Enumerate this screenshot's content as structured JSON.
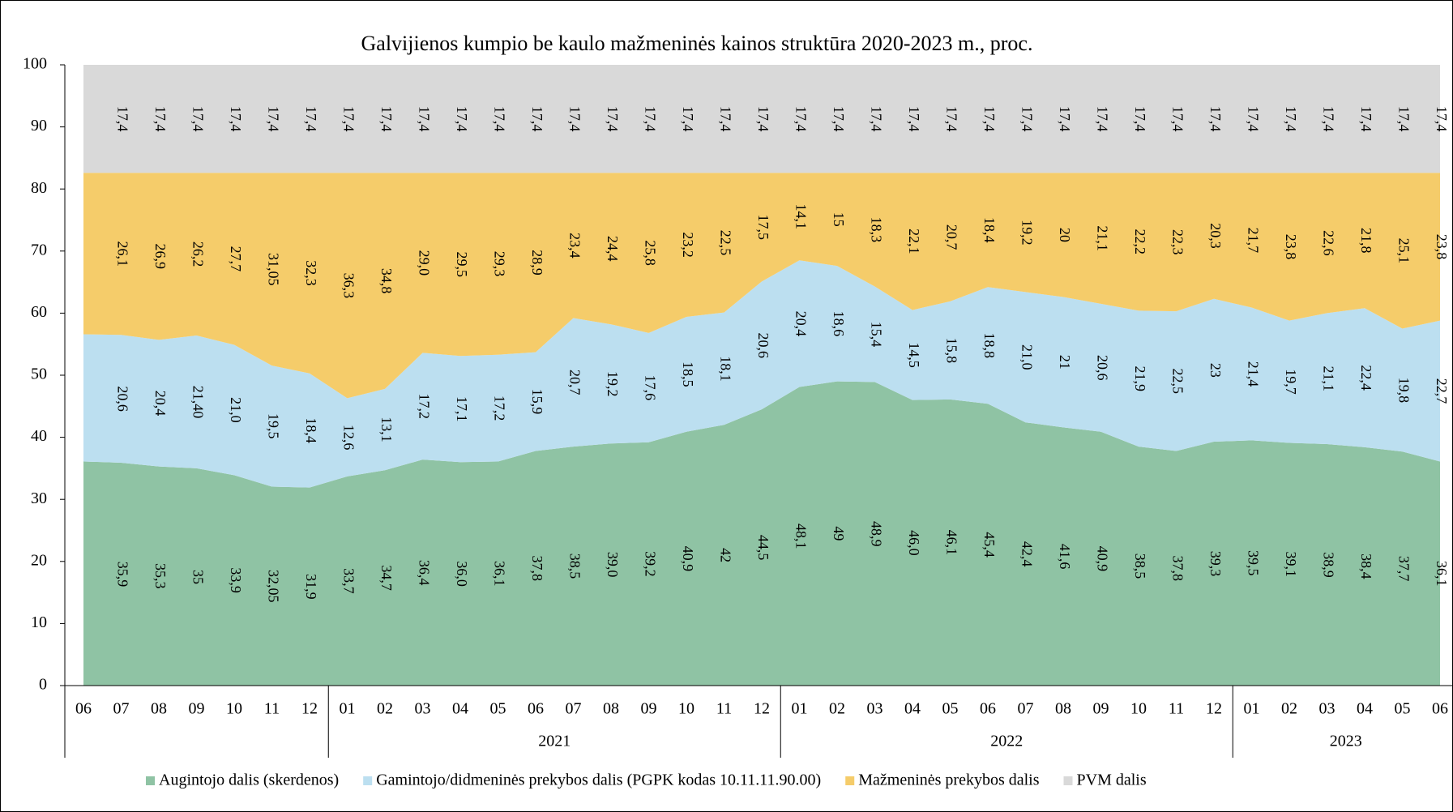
{
  "chart_data": {
    "type": "stacked_area",
    "title": "Galvijienos kumpio be kaulo mažmeninės kainos struktūra 2020-2023 m., proc.",
    "categories": [
      "06",
      "07",
      "08",
      "09",
      "10",
      "11",
      "12",
      "01",
      "02",
      "03",
      "04",
      "05",
      "06",
      "07",
      "08",
      "09",
      "10",
      "11",
      "12",
      "01",
      "02",
      "03",
      "04",
      "05",
      "06",
      "07",
      "08",
      "09",
      "10",
      "11",
      "12",
      "01",
      "02",
      "03",
      "04",
      "05",
      "06"
    ],
    "groups": [
      {
        "label": null,
        "start": 0,
        "end": 6
      },
      {
        "label": "2021",
        "start": 7,
        "end": 18
      },
      {
        "label": "2022",
        "start": 19,
        "end": 30
      },
      {
        "label": "2023",
        "start": 31,
        "end": 36
      }
    ],
    "ylim": [
      0,
      100
    ],
    "yticks": [
      0,
      10,
      20,
      30,
      40,
      50,
      60,
      70,
      80,
      90,
      100
    ],
    "series": [
      {
        "name": "Augintojo dalis (skerdenos)",
        "color": "#8fc3a4",
        "values": [
          36.1,
          35.9,
          35.3,
          35,
          33.9,
          32.05,
          31.9,
          33.7,
          34.7,
          36.4,
          36.0,
          36.1,
          37.8,
          38.5,
          39.0,
          39.2,
          40.9,
          42,
          44.5,
          48.1,
          49,
          48.9,
          46.0,
          46.1,
          45.4,
          42.4,
          41.6,
          40.9,
          38.5,
          37.8,
          39.3,
          39.5,
          39.1,
          38.9,
          38.4,
          37.7,
          36.1
        ],
        "value_labels": [
          null,
          "35,9",
          "35,3",
          "35",
          "33,9",
          "32,05",
          "31,9",
          "33,7",
          "34,7",
          "36,4",
          "36,0",
          "36,1",
          "37,8",
          "38,5",
          "39,0",
          "39,2",
          "40,9",
          "42",
          "44,5",
          "48,1",
          "49",
          "48,9",
          "46,0",
          "46,1",
          "45,4",
          "42,4",
          "41,6",
          "40,9",
          "38,5",
          "37,8",
          "39,3",
          "39,5",
          "39,1",
          "38,9",
          "38,4",
          "37,7",
          "36,1"
        ]
      },
      {
        "name": "Gamintojo/didmeninės prekybos dalis (PGPK kodas 10.11.11.90.00)",
        "color": "#bcdff0",
        "values": [
          20.5,
          20.6,
          20.4,
          21.4,
          21.0,
          19.5,
          18.4,
          12.6,
          13.1,
          17.2,
          17.1,
          17.2,
          15.9,
          20.7,
          19.2,
          17.6,
          18.5,
          18.1,
          20.6,
          20.4,
          18.6,
          15.4,
          14.5,
          15.8,
          18.8,
          21.0,
          21,
          20.6,
          21.9,
          22.5,
          23,
          21.4,
          19.7,
          21.1,
          22.4,
          19.8,
          22.7
        ],
        "value_labels": [
          null,
          "20,6",
          "20,4",
          "21,40",
          "21,0",
          "19,5",
          "18,4",
          "12,6",
          "13,1",
          "17,2",
          "17,1",
          "17,2",
          "15,9",
          "20,7",
          "19,2",
          "17,6",
          "18,5",
          "18,1",
          "20,6",
          "20,4",
          "18,6",
          "15,4",
          "14,5",
          "15,8",
          "18,8",
          "21,0",
          "21",
          "20,6",
          "21,9",
          "22,5",
          "23",
          "21,4",
          "19,7",
          "21,1",
          "22,4",
          "19,8",
          "22,7"
        ]
      },
      {
        "name": "Mažmeninės prekybos dalis",
        "color": "#f5cc6a",
        "values": [
          26.0,
          26.1,
          26.9,
          26.2,
          27.7,
          31.05,
          32.3,
          36.3,
          34.8,
          29.0,
          29.5,
          29.3,
          28.9,
          23.4,
          24.4,
          25.8,
          23.2,
          22.5,
          17.5,
          14.1,
          15,
          18.3,
          22.1,
          20.7,
          18.4,
          19.2,
          20,
          21.1,
          22.2,
          22.3,
          20.3,
          21.7,
          23.8,
          22.6,
          21.8,
          25.1,
          23.8
        ],
        "value_labels": [
          null,
          "26,1",
          "26,9",
          "26,2",
          "27,7",
          "31,05",
          "32,3",
          "36,3",
          "34,8",
          "29,0",
          "29,5",
          "29,3",
          "28,9",
          "23,4",
          "24,4",
          "25,8",
          "23,2",
          "22,5",
          "17,5",
          "14,1",
          "15",
          "18,3",
          "22,1",
          "20,7",
          "18,4",
          "19,2",
          "20",
          "21,1",
          "22,2",
          "22,3",
          "20,3",
          "21,7",
          "23,8",
          "22,6",
          "21,8",
          "25,1",
          "23,8"
        ]
      },
      {
        "name": "PVM dalis",
        "color": "#d9d9d9",
        "values": [
          17.4,
          17.4,
          17.4,
          17.4,
          17.4,
          17.4,
          17.4,
          17.4,
          17.4,
          17.4,
          17.4,
          17.4,
          17.4,
          17.4,
          17.4,
          17.4,
          17.4,
          17.4,
          17.4,
          17.4,
          17.4,
          17.4,
          17.4,
          17.4,
          17.4,
          17.4,
          17.4,
          17.4,
          17.4,
          17.4,
          17.4,
          17.4,
          17.4,
          17.4,
          17.4,
          17.4,
          17.4
        ],
        "value_labels": [
          null,
          "17,4",
          "17,4",
          "17,4",
          "17,4",
          "17,4",
          "17,4",
          "17,4",
          "17,4",
          "17,4",
          "17,4",
          "17,4",
          "17,4",
          "17,4",
          "17,4",
          "17,4",
          "17,4",
          "17,4",
          "17,4",
          "17,4",
          "17,4",
          "17,4",
          "17,4",
          "17,4",
          "17,4",
          "17,4",
          "17,4",
          "17,4",
          "17,4",
          "17,4",
          "17,4",
          "17,4",
          "17,4",
          "17,4",
          "17,4",
          "17,4",
          "17,4"
        ]
      }
    ],
    "legend": "bottom"
  }
}
